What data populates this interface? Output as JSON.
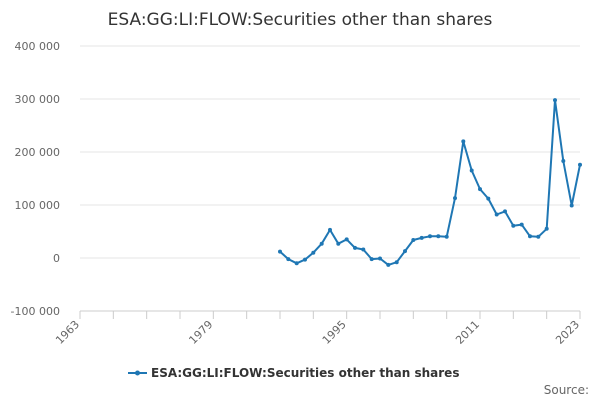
{
  "chart_data": {
    "type": "line",
    "title": "ESA:GG:LI:FLOW:Securities other than shares",
    "xlabel": "",
    "ylabel": "",
    "x_range": [
      1963,
      2023
    ],
    "x_ticks": [
      "1963",
      "1979",
      "1995",
      "2011",
      "2023"
    ],
    "ylim": [
      -100000,
      400000
    ],
    "y_ticks": [
      "-100 000",
      "0",
      "100 000",
      "200 000",
      "300 000",
      "400 000"
    ],
    "grid": true,
    "legend_position": "bottom",
    "color": "#1f77b4",
    "series": [
      {
        "name": "ESA:GG:LI:FLOW:Securities other than shares",
        "x": [
          1987,
          1988,
          1989,
          1990,
          1991,
          1992,
          1993,
          1994,
          1995,
          1996,
          1997,
          1998,
          1999,
          2000,
          2001,
          2002,
          2003,
          2004,
          2005,
          2006,
          2007,
          2008,
          2009,
          2010,
          2011,
          2012,
          2013,
          2014,
          2015,
          2016,
          2017,
          2018,
          2019,
          2020,
          2021,
          2022,
          2023
        ],
        "values": [
          12000,
          -2000,
          -10000,
          -3000,
          10000,
          27000,
          53000,
          27000,
          35000,
          19000,
          16000,
          -2000,
          -1000,
          -13000,
          -8000,
          13000,
          34000,
          38000,
          41000,
          41000,
          40000,
          113000,
          220000,
          165000,
          130000,
          112000,
          82000,
          88000,
          61000,
          63000,
          41000,
          40000,
          55000,
          298000,
          183000,
          99000,
          176000
        ]
      }
    ]
  },
  "legend": {
    "label": "ESA:GG:LI:FLOW:Securities other than shares"
  },
  "source_label": "Source:"
}
